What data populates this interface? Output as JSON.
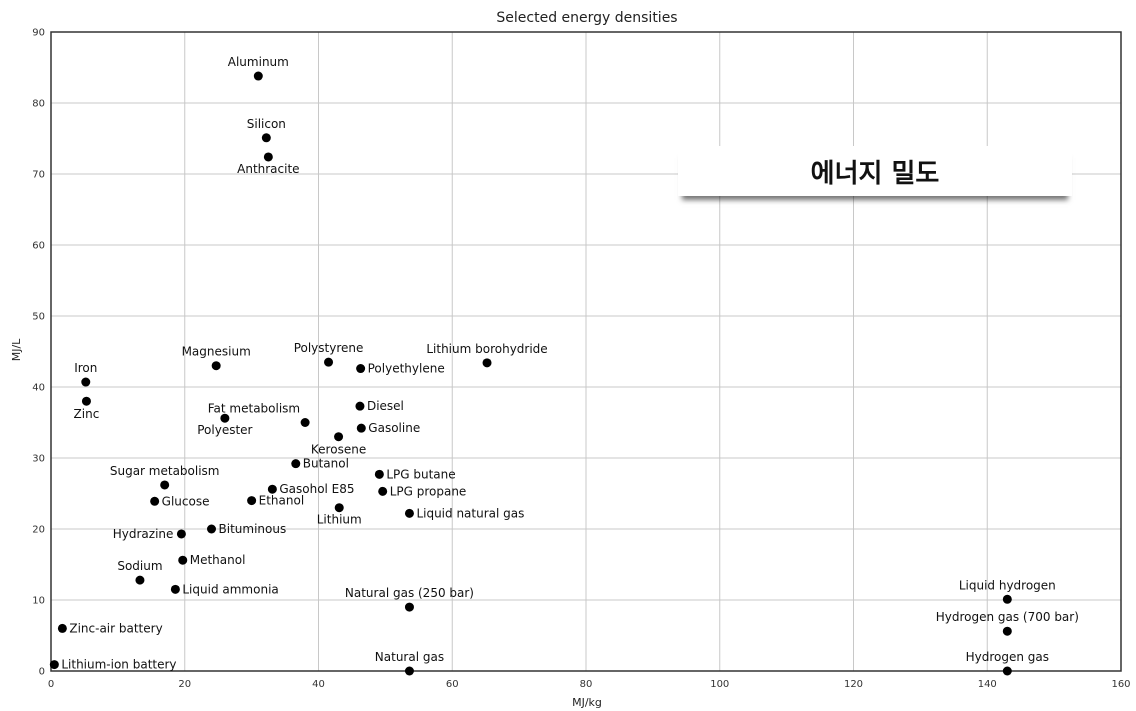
{
  "overlay_text": "에너지 밀도",
  "chart_data": {
    "type": "scatter",
    "title": "Selected energy densities",
    "xlabel": "MJ/kg",
    "ylabel": "MJ/L",
    "xlim": [
      0,
      160
    ],
    "ylim": [
      0,
      90
    ],
    "xticks": [
      0,
      20,
      40,
      60,
      80,
      100,
      120,
      140,
      160
    ],
    "yticks": [
      0,
      10,
      20,
      30,
      40,
      50,
      60,
      70,
      80,
      90
    ],
    "grid": true,
    "marker_color": "#000000",
    "points": [
      {
        "label": "Aluminum",
        "x": 31.0,
        "y": 83.8
      },
      {
        "label": "Silicon",
        "x": 32.2,
        "y": 75.1
      },
      {
        "label": "Anthracite",
        "x": 32.5,
        "y": 72.4
      },
      {
        "label": "Magnesium",
        "x": 24.7,
        "y": 43.0
      },
      {
        "label": "Polystyrene",
        "x": 41.5,
        "y": 43.5
      },
      {
        "label": "Polyethylene",
        "x": 46.3,
        "y": 42.6
      },
      {
        "label": "Lithium borohydride",
        "x": 65.2,
        "y": 43.4
      },
      {
        "label": "Iron",
        "x": 5.2,
        "y": 40.7
      },
      {
        "label": "Zinc",
        "x": 5.3,
        "y": 38.0
      },
      {
        "label": "Diesel",
        "x": 46.2,
        "y": 37.3
      },
      {
        "label": "Fat metabolism",
        "x": 38.0,
        "y": 35.0
      },
      {
        "label": "Polyester",
        "x": 26.0,
        "y": 35.6
      },
      {
        "label": "Gasoline",
        "x": 46.4,
        "y": 34.2
      },
      {
        "label": "Kerosene",
        "x": 43.0,
        "y": 33.0
      },
      {
        "label": "Butanol",
        "x": 36.6,
        "y": 29.2
      },
      {
        "label": "Sugar metabolism",
        "x": 17.0,
        "y": 26.2
      },
      {
        "label": "LPG butane",
        "x": 49.1,
        "y": 27.7
      },
      {
        "label": "Gasohol E85",
        "x": 33.1,
        "y": 25.6
      },
      {
        "label": "LPG propane",
        "x": 49.6,
        "y": 25.3
      },
      {
        "label": "Glucose",
        "x": 15.5,
        "y": 23.9
      },
      {
        "label": "Ethanol",
        "x": 30.0,
        "y": 24.0
      },
      {
        "label": "Lithium",
        "x": 43.1,
        "y": 23.0
      },
      {
        "label": "Liquid natural gas",
        "x": 53.6,
        "y": 22.2
      },
      {
        "label": "Bituminous",
        "x": 24.0,
        "y": 20.0
      },
      {
        "label": "Hydrazine",
        "x": 19.5,
        "y": 19.3
      },
      {
        "label": "Methanol",
        "x": 19.7,
        "y": 15.6
      },
      {
        "label": "Sodium",
        "x": 13.3,
        "y": 12.8
      },
      {
        "label": "Liquid ammonia",
        "x": 18.6,
        "y": 11.5
      },
      {
        "label": "Natural gas (250 bar)",
        "x": 53.6,
        "y": 9.0
      },
      {
        "label": "Zinc-air battery",
        "x": 1.7,
        "y": 6.0
      },
      {
        "label": "Lithium-ion battery",
        "x": 0.5,
        "y": 0.9
      },
      {
        "label": "Natural gas",
        "x": 53.6,
        "y": 0.0
      },
      {
        "label": "Liquid hydrogen",
        "x": 143.0,
        "y": 10.1
      },
      {
        "label": "Hydrogen gas (700 bar)",
        "x": 143.0,
        "y": 5.6
      },
      {
        "label": "Hydrogen gas",
        "x": 143.0,
        "y": 0.0
      }
    ]
  }
}
